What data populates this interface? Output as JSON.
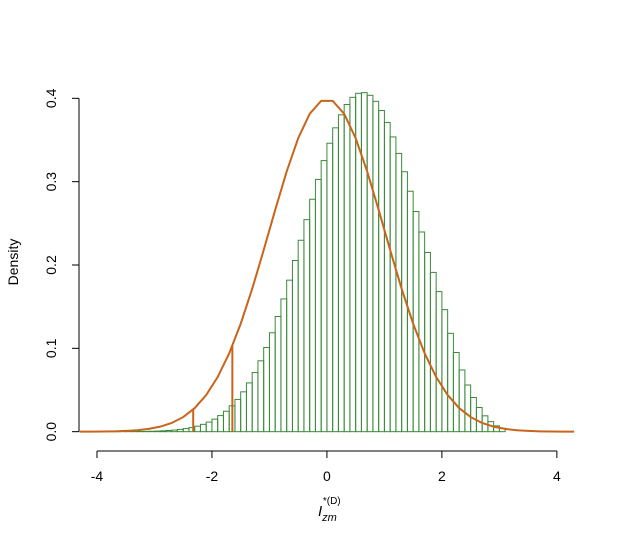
{
  "chart_data": {
    "type": "histogram",
    "ylabel": "Density",
    "xlabel": {
      "main": "I",
      "sub": "zm",
      "sup": "*(D)"
    },
    "bins": [
      -3.7,
      -3.6,
      -3.5,
      -3.4,
      -3.3,
      -3.2,
      -3.1,
      -3.0,
      -2.9,
      -2.8,
      -2.7,
      -2.6,
      -2.5,
      -2.4,
      -2.3,
      -2.2,
      -2.1,
      -2.0,
      -1.9,
      -1.8,
      -1.7,
      -1.6,
      -1.5,
      -1.4,
      -1.3,
      -1.2,
      -1.1,
      -1.0,
      -0.9,
      -0.8,
      -0.7,
      -0.6,
      -0.5,
      -0.4,
      -0.3,
      -0.2,
      -0.1,
      0.0,
      0.1,
      0.2,
      0.3,
      0.4,
      0.5,
      0.6,
      0.7,
      0.8,
      0.9,
      1.0,
      1.1,
      1.2,
      1.3,
      1.4,
      1.5,
      1.6,
      1.7,
      1.8,
      1.9,
      2.0,
      2.1,
      2.2,
      2.3,
      2.4,
      2.5,
      2.6,
      2.7,
      2.8,
      2.9,
      3.0,
      3.1
    ],
    "values": [
      4e-05,
      7e-05,
      0.0001,
      0.00015,
      0.0002,
      0.0003,
      0.0005,
      0.0007,
      0.001,
      0.0014,
      0.0019,
      0.0027,
      0.0037,
      0.0049,
      0.0066,
      0.0088,
      0.0115,
      0.015,
      0.0193,
      0.0245,
      0.031,
      0.0387,
      0.0478,
      0.0585,
      0.0709,
      0.085,
      0.101,
      0.1187,
      0.1382,
      0.1593,
      0.1818,
      0.2054,
      0.2297,
      0.2544,
      0.2789,
      0.3027,
      0.3253,
      0.3461,
      0.3646,
      0.3802,
      0.3926,
      0.4012,
      0.406,
      0.4068,
      0.4036,
      0.3964,
      0.3854,
      0.3711,
      0.3537,
      0.3339,
      0.3119,
      0.2885,
      0.2642,
      0.2396,
      0.215,
      0.1911,
      0.1681,
      0.1464,
      0.118,
      0.095,
      0.074,
      0.056,
      0.041,
      0.029,
      0.019,
      0.012,
      0.007,
      0.004
    ],
    "color": "#3a8a3a",
    "curve": {
      "color": "#c8651b",
      "x": [
        -4.3,
        -4.1,
        -3.9,
        -3.7,
        -3.5,
        -3.3,
        -3.1,
        -2.9,
        -2.7,
        -2.5,
        -2.3,
        -2.1,
        -1.9,
        -1.7,
        -1.5,
        -1.3,
        -1.1,
        -0.9,
        -0.7,
        -0.5,
        -0.3,
        -0.1,
        0.1,
        0.3,
        0.5,
        0.7,
        0.9,
        1.1,
        1.3,
        1.5,
        1.7,
        1.9,
        2.1,
        2.3,
        2.5,
        2.7,
        2.9,
        3.1,
        3.3,
        3.5,
        3.7,
        3.9,
        4.1,
        4.3
      ],
      "values": [
        4e-05,
        9e-05,
        0.0002,
        0.0004,
        0.0009,
        0.0017,
        0.0033,
        0.006,
        0.0104,
        0.0175,
        0.0283,
        0.044,
        0.0656,
        0.094,
        0.1295,
        0.1714,
        0.2179,
        0.2661,
        0.3123,
        0.3521,
        0.3814,
        0.397,
        0.397,
        0.3814,
        0.3521,
        0.3123,
        0.2661,
        0.2179,
        0.1714,
        0.1295,
        0.094,
        0.0656,
        0.044,
        0.0283,
        0.0175,
        0.0104,
        0.006,
        0.0033,
        0.0017,
        0.0009,
        0.0004,
        0.0002,
        9e-05,
        4e-05
      ]
    },
    "vlines": {
      "color": "#c8651b",
      "x": [
        -2.326,
        -1.645
      ],
      "values": [
        0.0267,
        0.1031
      ]
    },
    "xlim": [
      -4.33,
      4.35
    ],
    "ylim": [
      -0.016,
      0.416
    ],
    "xticks": [
      -4,
      -2,
      0,
      2,
      4
    ],
    "yticks": [
      {
        "value": 0,
        "label": "0.0"
      },
      0.1,
      0.2,
      0.3,
      0.4
    ]
  }
}
